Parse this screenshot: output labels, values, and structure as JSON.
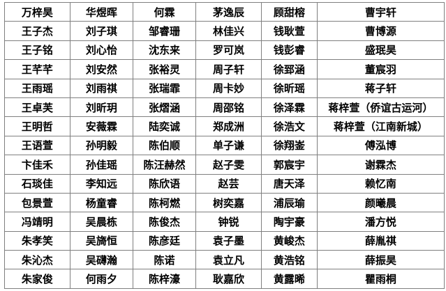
{
  "colors": {
    "background": "#ffffff",
    "border": "#7f7f7f",
    "text": "#000000"
  },
  "table": {
    "column_count": 6,
    "row_count": 15,
    "rows": [
      [
        "万梓昊",
        "华煜晖",
        "何霖",
        "茅逸辰",
        "顾甜榕",
        "曹宇轩"
      ],
      [
        "王子杰",
        "刘子琪",
        "邹睿珊",
        "林佳兴",
        "钱耿萱",
        "曹博源"
      ],
      [
        "王子铭",
        "刘心怡",
        "沈东来",
        "罗可岚",
        "钱彭睿",
        "盛珉昊"
      ],
      [
        "王芊芊",
        "刘安然",
        "张裕灵",
        "周子轩",
        "徐郅涵",
        "董宸羽"
      ],
      [
        "王雨瑶",
        "刘雨祺",
        "张瑞霏",
        "周卡妙",
        "徐昕瑶",
        "蒋子轩"
      ],
      [
        "王卓芙",
        "刘昕玥",
        "张熠涵",
        "周邵铭",
        "徐泽霖",
        "蒋梓萱（侨谊古运河）"
      ],
      [
        "王明哲",
        "安薇霖",
        "陆奕诚",
        "郑成洲",
        "徐浩文",
        "蒋梓萱（江南新城）"
      ],
      [
        "王语萱",
        "孙明毅",
        "陈伯顺",
        "单子谦",
        "徐翔崟",
        "傅泓博"
      ],
      [
        "卞佳禾",
        "孙佳瑶",
        "陈汪赫然",
        "赵子雯",
        "郭宸宇",
        "谢霖杰"
      ],
      [
        "石琰佳",
        "李知远",
        "陈欣语",
        "赵芸",
        "唐天泽",
        "赖忆南"
      ],
      [
        "包景萱",
        "杨童睿",
        "陈柯燃",
        "树奕嘉",
        "浦辰瑜",
        "颜曦晨"
      ],
      [
        "冯靖明",
        "吴晨栋",
        "陈俊杰",
        "钟锐",
        "陶宇豪",
        "潘方悦"
      ],
      [
        "朱孝笑",
        "吴旖恒",
        "陈彦廷",
        "袁子墨",
        "黄峻杰",
        "薛胤祺"
      ],
      [
        "朱沁杰",
        "吴礴瀚",
        "陈诺",
        "袁立凡",
        "黄浩铭",
        "薛振昊"
      ],
      [
        "朱家俊",
        "何雨夕",
        "陈梓濠",
        "耿嘉欣",
        "黄露晞",
        "瞿雨桐"
      ]
    ]
  }
}
